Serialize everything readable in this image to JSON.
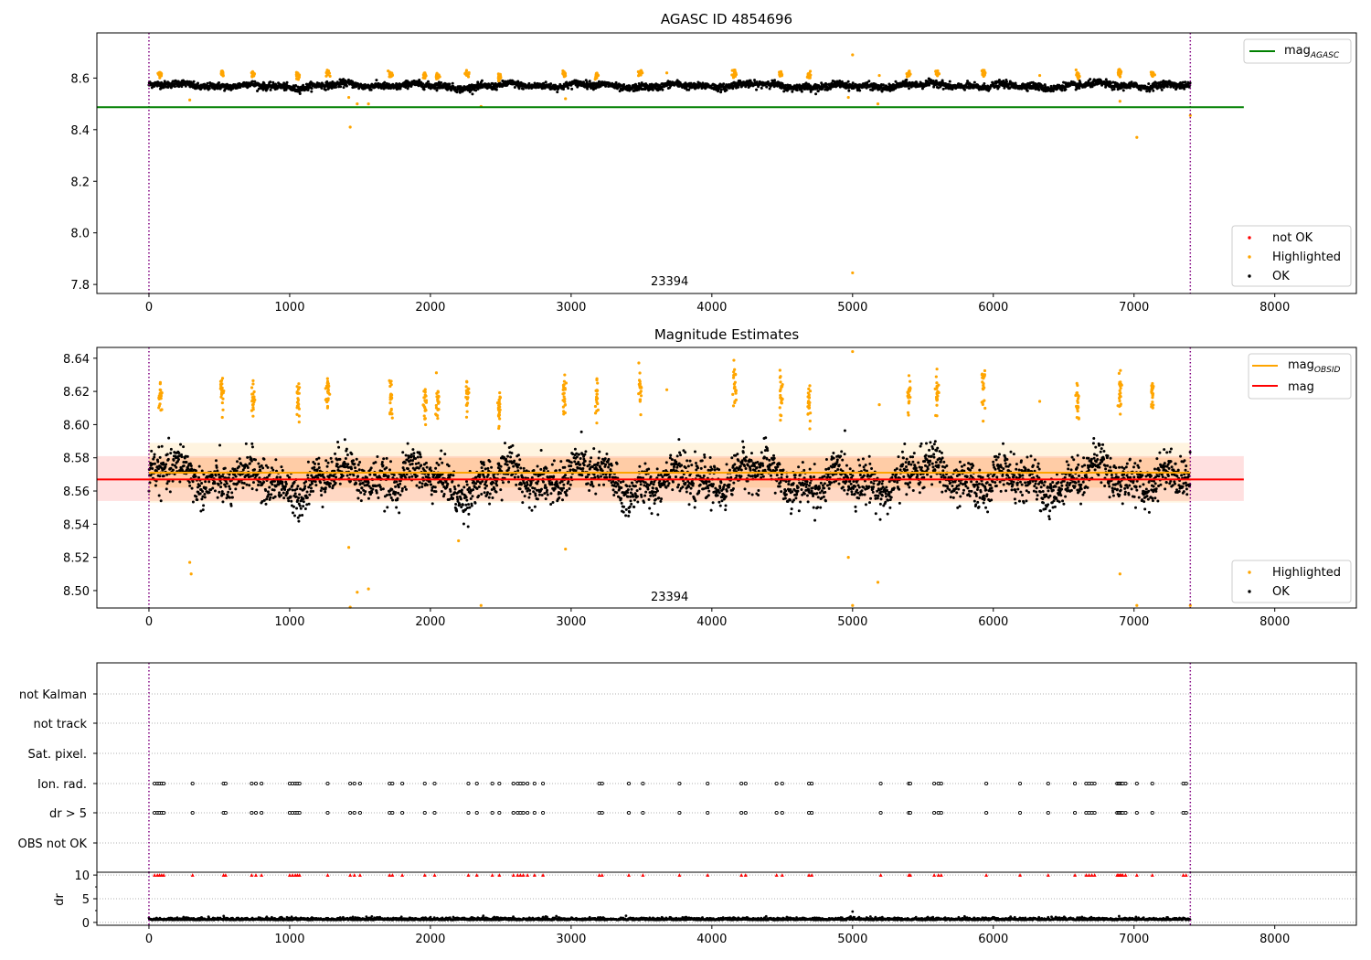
{
  "chart_data": [
    {
      "type": "scatter",
      "title": "AGASC ID 4854696",
      "xlim": [
        -370,
        8580
      ],
      "ylim": [
        7.765,
        8.775
      ],
      "x_ticks": [
        "0",
        "1000",
        "2000",
        "3000",
        "4000",
        "5000",
        "6000",
        "7000",
        "8000"
      ],
      "y_ticks": [
        "7.8",
        "8.0",
        "8.2",
        "8.4",
        "8.6"
      ],
      "x_tick_values": [
        0,
        1000,
        2000,
        3000,
        4000,
        5000,
        6000,
        7000,
        8000
      ],
      "y_tick_values": [
        7.8,
        8.0,
        8.2,
        8.4,
        8.6
      ],
      "vlines": [
        0,
        7400
      ],
      "annotation": "23394",
      "annotation_x": 3700,
      "line": {
        "label": "mag",
        "sub": "AGASC",
        "value": 8.487,
        "x_range": [
          -370,
          7780
        ],
        "color": "#008000"
      },
      "legend_scatter": [
        {
          "label": "not OK",
          "color": "#ff0000"
        },
        {
          "label": "Highlighted",
          "color": "#ffa500"
        },
        {
          "label": "OK",
          "color": "#000000"
        }
      ],
      "series": [
        {
          "name": "OK",
          "color": "#000000",
          "baseline": 8.57,
          "spread": 0.012
        },
        {
          "name": "Highlighted",
          "color": "#ffa500",
          "clusters": [
            [
              80,
              8.615
            ],
            [
              520,
              8.62
            ],
            [
              740,
              8.615
            ],
            [
              1060,
              8.61
            ],
            [
              1270,
              8.62
            ],
            [
              1720,
              8.615
            ],
            [
              1960,
              8.61
            ],
            [
              2050,
              8.61
            ],
            [
              2260,
              8.615
            ],
            [
              2490,
              8.605
            ],
            [
              2950,
              8.615
            ],
            [
              3180,
              8.61
            ],
            [
              3490,
              8.62
            ],
            [
              4160,
              8.62
            ],
            [
              4490,
              8.615
            ],
            [
              4690,
              8.61
            ],
            [
              5400,
              8.615
            ],
            [
              5600,
              8.62
            ],
            [
              5930,
              8.62
            ],
            [
              6600,
              8.61
            ],
            [
              6900,
              8.62
            ],
            [
              7130,
              8.615
            ]
          ],
          "outliers": [
            [
              290,
              8.515
            ],
            [
              1430,
              8.41
            ],
            [
              1420,
              8.525
            ],
            [
              1480,
              8.5
            ],
            [
              1560,
              8.5
            ],
            [
              2360,
              8.49
            ],
            [
              2960,
              8.52
            ],
            [
              3680,
              8.62
            ],
            [
              4970,
              8.525
            ],
            [
              5000,
              8.69
            ],
            [
              5000,
              7.845
            ],
            [
              5180,
              8.5
            ],
            [
              5190,
              8.61
            ],
            [
              6330,
              8.61
            ],
            [
              6900,
              8.51
            ],
            [
              7020,
              8.37
            ],
            [
              7400,
              8.455
            ]
          ]
        }
      ]
    },
    {
      "type": "scatter",
      "title": "Magnitude Estimates",
      "xlim": [
        -370,
        8580
      ],
      "ylim": [
        8.4895,
        8.6465
      ],
      "x_ticks": [
        "0",
        "1000",
        "2000",
        "3000",
        "4000",
        "5000",
        "6000",
        "7000",
        "8000"
      ],
      "y_ticks": [
        "8.50",
        "8.52",
        "8.54",
        "8.56",
        "8.58",
        "8.60",
        "8.62",
        "8.64"
      ],
      "x_tick_values": [
        0,
        1000,
        2000,
        3000,
        4000,
        5000,
        6000,
        7000,
        8000
      ],
      "y_tick_values": [
        8.5,
        8.52,
        8.54,
        8.56,
        8.58,
        8.6,
        8.62,
        8.64
      ],
      "vlines": [
        0,
        7400
      ],
      "annotation": "23394",
      "annotation_x": 3700,
      "mag_obsid": {
        "label": "mag",
        "sub": "OBSID",
        "value": 8.571,
        "band": [
          8.553,
          8.589
        ],
        "inner_band": [
          8.562,
          8.58
        ],
        "x_range": [
          0,
          7400
        ],
        "color": "#ffa500"
      },
      "mag": {
        "label": "mag",
        "value": 8.567,
        "band": [
          8.554,
          8.581
        ],
        "x_range": [
          -370,
          7780
        ],
        "color": "#ff0000"
      },
      "legend_scatter": [
        {
          "label": "Highlighted",
          "color": "#ffa500"
        },
        {
          "label": "OK",
          "color": "#000000"
        }
      ],
      "series": [
        {
          "name": "OK",
          "color": "#000000",
          "baseline": 8.567,
          "spread": 0.011
        },
        {
          "name": "Highlighted",
          "color": "#ffa500",
          "clusters": [
            [
              80,
              8.617
            ],
            [
              520,
              8.622
            ],
            [
              740,
              8.615
            ],
            [
              1060,
              8.613
            ],
            [
              1270,
              8.62
            ],
            [
              1720,
              8.617
            ],
            [
              1960,
              8.613
            ],
            [
              2050,
              8.613
            ],
            [
              2260,
              8.617
            ],
            [
              2490,
              8.61
            ],
            [
              2950,
              8.617
            ],
            [
              3180,
              8.615
            ],
            [
              3490,
              8.62
            ],
            [
              4160,
              8.622
            ],
            [
              4490,
              8.617
            ],
            [
              4690,
              8.613
            ],
            [
              5400,
              8.617
            ],
            [
              5600,
              8.62
            ],
            [
              5930,
              8.622
            ],
            [
              6600,
              8.613
            ],
            [
              6900,
              8.622
            ],
            [
              7130,
              8.617
            ]
          ],
          "outliers": [
            [
              290,
              8.517
            ],
            [
              300,
              8.51
            ],
            [
              1430,
              8.49
            ],
            [
              1420,
              8.526
            ],
            [
              1480,
              8.499
            ],
            [
              1560,
              8.501
            ],
            [
              2200,
              8.53
            ],
            [
              2360,
              8.491
            ],
            [
              2960,
              8.525
            ],
            [
              3680,
              8.621
            ],
            [
              4970,
              8.52
            ],
            [
              5000,
              8.644
            ],
            [
              5000,
              8.491
            ],
            [
              5180,
              8.505
            ],
            [
              5190,
              8.612
            ],
            [
              6330,
              8.614
            ],
            [
              6900,
              8.51
            ],
            [
              7020,
              8.491
            ],
            [
              7400,
              8.491
            ]
          ]
        }
      ]
    },
    {
      "type": "scatter",
      "title": "",
      "xlim": [
        -370,
        8580
      ],
      "vlines": [
        0,
        7400
      ],
      "categories": [
        "not Kalman",
        "not track",
        "Sat. pixel.",
        "Ion. rad.",
        "dr > 5",
        "OBS not OK"
      ],
      "flag_x": [
        40,
        60,
        75,
        90,
        105,
        310,
        530,
        545,
        730,
        760,
        800,
        1000,
        1020,
        1040,
        1055,
        1070,
        1270,
        1430,
        1460,
        1500,
        1710,
        1730,
        1800,
        1960,
        2030,
        2270,
        2330,
        2440,
        2490,
        2590,
        2620,
        2640,
        2660,
        2690,
        2740,
        2800,
        3200,
        3220,
        3410,
        3510,
        3770,
        3970,
        4210,
        4240,
        4460,
        4500,
        4690,
        4710,
        5200,
        5400,
        5410,
        5580,
        5610,
        5630,
        5950,
        6190,
        6390,
        6580,
        6660,
        6680,
        6700,
        6720,
        6880,
        6890,
        6900,
        6910,
        6920,
        6940,
        7020,
        7130,
        7350,
        7370
      ]
    },
    {
      "type": "scatter",
      "title": "",
      "xlim": [
        -370,
        8580
      ],
      "ylim": [
        -0.6,
        10.6
      ],
      "ylabel": "dr",
      "x_ticks": [
        "0",
        "1000",
        "2000",
        "3000",
        "4000",
        "5000",
        "6000",
        "7000",
        "8000"
      ],
      "y_ticks": [
        "0",
        "5",
        "10"
      ],
      "x_tick_values": [
        0,
        1000,
        2000,
        3000,
        4000,
        5000,
        6000,
        7000,
        8000
      ],
      "y_tick_values": [
        0,
        5,
        10
      ],
      "vlines": [
        0,
        7400
      ],
      "series": [
        {
          "name": "dr",
          "color": "#000000",
          "baseline": 0.5,
          "spread": 0.25
        },
        {
          "name": "clipped",
          "color": "#ff0000",
          "value": 10
        }
      ]
    }
  ]
}
